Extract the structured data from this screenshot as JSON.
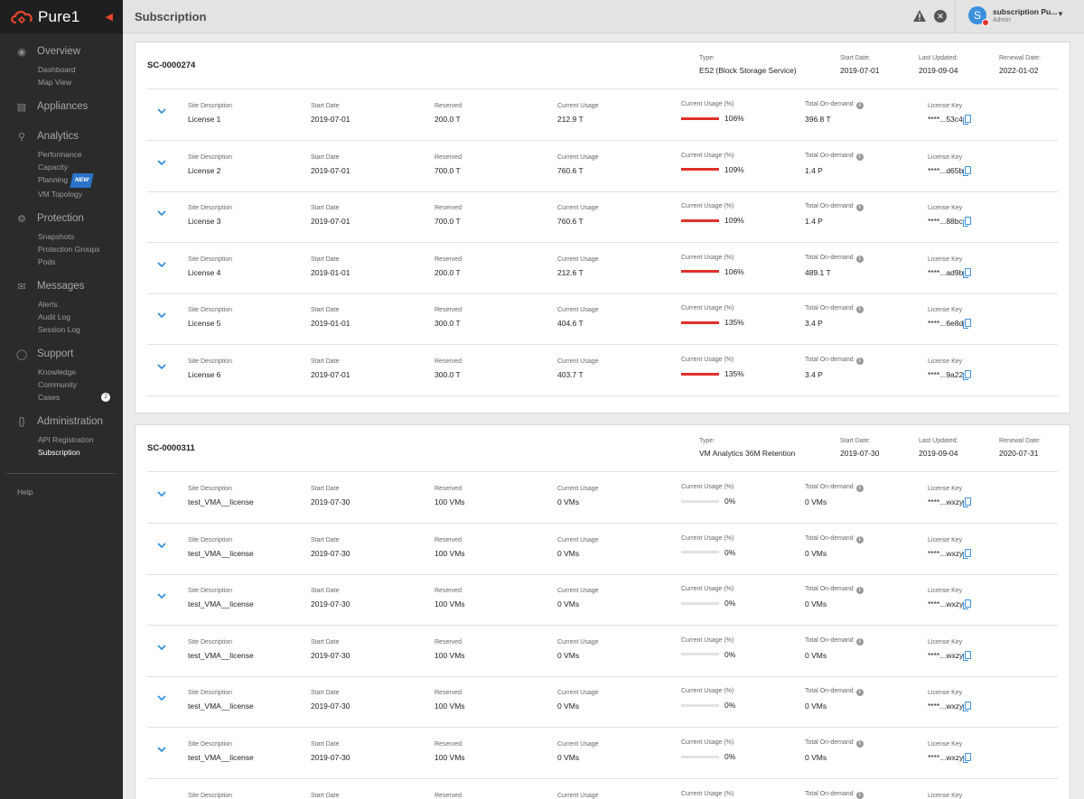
{
  "app": {
    "brand": "Pure1"
  },
  "sidebar": {
    "sections": [
      {
        "label": "Overview",
        "icon": "dashboard-icon",
        "items": [
          {
            "label": "Dashboard"
          },
          {
            "label": "Map View"
          }
        ]
      },
      {
        "label": "Appliances",
        "icon": "appliances-icon",
        "items": []
      },
      {
        "label": "Analytics",
        "icon": "analytics-icon",
        "items": [
          {
            "label": "Performance"
          },
          {
            "label": "Capacity"
          },
          {
            "label": "Planning",
            "badge": "NEW"
          },
          {
            "label": "VM Topology"
          }
        ]
      },
      {
        "label": "Protection",
        "icon": "protection-icon",
        "items": [
          {
            "label": "Snapshots"
          },
          {
            "label": "Protection Groups"
          },
          {
            "label": "Pods"
          }
        ]
      },
      {
        "label": "Messages",
        "icon": "messages-icon",
        "items": [
          {
            "label": "Alerts"
          },
          {
            "label": "Audit Log"
          },
          {
            "label": "Session Log"
          }
        ]
      },
      {
        "label": "Support",
        "icon": "support-icon",
        "items": [
          {
            "label": "Knowledge"
          },
          {
            "label": "Community"
          },
          {
            "label": "Cases",
            "count": "2"
          }
        ]
      },
      {
        "label": "Administration",
        "icon": "administration-icon",
        "items": [
          {
            "label": "API Registration"
          },
          {
            "label": "Subscription",
            "active": true
          }
        ]
      }
    ],
    "help": "Help"
  },
  "header": {
    "title": "Subscription",
    "user_initial": "S",
    "user_name": "subscription Pu...",
    "user_role": "Admin"
  },
  "labels": {
    "type": "Type:",
    "start_date": "Start Date:",
    "last_updated": "Last Updated:",
    "renewal_date": "Renewal Date:",
    "site_description": "Site Description",
    "row_start_date": "Start Date",
    "reserved": "Reserved",
    "current_usage": "Current Usage",
    "current_usage_pct": "Current Usage (%)",
    "total_on_demand": "Total On-demand",
    "license_key": "License Key"
  },
  "subscriptions": [
    {
      "id": "SC-0000274",
      "type": "ES2 (Block Storage Service)",
      "start_date": "2019-07-01",
      "last_updated": "2019-09-04",
      "renewal_date": "2022-01-02",
      "licenses": [
        {
          "site": "License 1",
          "start": "2019-07-01",
          "reserved": "200.0 T",
          "usage": "212.9 T",
          "pct": "106%",
          "pct_value": 106,
          "on_demand": "396.8 T",
          "key": "****...53c4"
        },
        {
          "site": "License 2",
          "start": "2019-07-01",
          "reserved": "700.0 T",
          "usage": "760.6 T",
          "pct": "109%",
          "pct_value": 109,
          "on_demand": "1.4 P",
          "key": "****...d65b"
        },
        {
          "site": "License 3",
          "start": "2019-07-01",
          "reserved": "700.0 T",
          "usage": "760.6 T",
          "pct": "109%",
          "pct_value": 109,
          "on_demand": "1.4 P",
          "key": "****...88bc"
        },
        {
          "site": "License 4",
          "start": "2019-01-01",
          "reserved": "200.0 T",
          "usage": "212.6 T",
          "pct": "106%",
          "pct_value": 106,
          "on_demand": "489.1 T",
          "key": "****...ad9b"
        },
        {
          "site": "License 5",
          "start": "2019-01-01",
          "reserved": "300.0 T",
          "usage": "404.6 T",
          "pct": "135%",
          "pct_value": 135,
          "on_demand": "3.4 P",
          "key": "****...6e8d"
        },
        {
          "site": "License 6",
          "start": "2019-07-01",
          "reserved": "300.0 T",
          "usage": "403.7 T",
          "pct": "135%",
          "pct_value": 135,
          "on_demand": "3.4 P",
          "key": "****...9a22"
        }
      ]
    },
    {
      "id": "SC-0000311",
      "type": "VM Analytics 36M Retention",
      "start_date": "2019-07-30",
      "last_updated": "2019-09-04",
      "renewal_date": "2020-07-31",
      "licenses": [
        {
          "site": "test_VMA__license",
          "start": "2019-07-30",
          "reserved": "100 VMs",
          "usage": "0 VMs",
          "pct": "0%",
          "pct_value": 0,
          "on_demand": "0 VMs",
          "key": "****...wxzy"
        },
        {
          "site": "test_VMA__license",
          "start": "2019-07-30",
          "reserved": "100 VMs",
          "usage": "0 VMs",
          "pct": "0%",
          "pct_value": 0,
          "on_demand": "0 VMs",
          "key": "****...wxzy"
        },
        {
          "site": "test_VMA__license",
          "start": "2019-07-30",
          "reserved": "100 VMs",
          "usage": "0 VMs",
          "pct": "0%",
          "pct_value": 0,
          "on_demand": "0 VMs",
          "key": "****...wxzy"
        },
        {
          "site": "test_VMA__license",
          "start": "2019-07-30",
          "reserved": "100 VMs",
          "usage": "0 VMs",
          "pct": "0%",
          "pct_value": 0,
          "on_demand": "0 VMs",
          "key": "****...wxzy"
        },
        {
          "site": "test_VMA__license",
          "start": "2019-07-30",
          "reserved": "100 VMs",
          "usage": "0 VMs",
          "pct": "0%",
          "pct_value": 0,
          "on_demand": "0 VMs",
          "key": "****...wxzy"
        },
        {
          "site": "test_VMA__license",
          "start": "2019-07-30",
          "reserved": "100 VMs",
          "usage": "0 VMs",
          "pct": "0%",
          "pct_value": 0,
          "on_demand": "0 VMs",
          "key": "****...wxzy"
        },
        {
          "site": "",
          "start": "",
          "reserved": "",
          "usage": "",
          "pct": "",
          "pct_value": 0,
          "on_demand": "",
          "key": ""
        }
      ]
    }
  ]
}
